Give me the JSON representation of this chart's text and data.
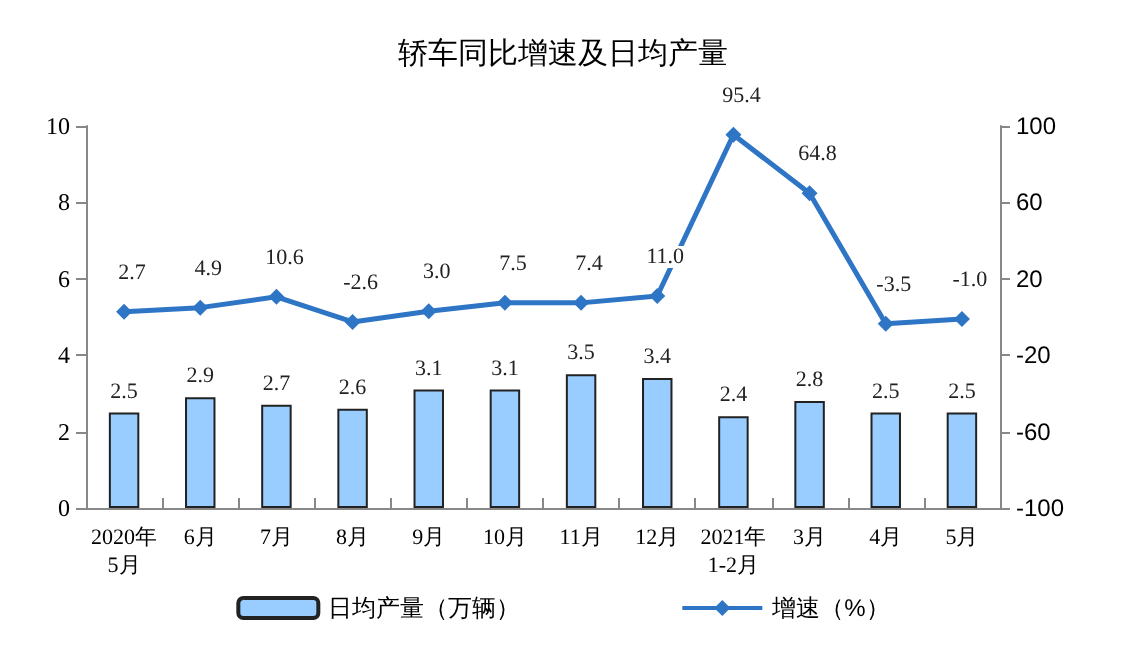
{
  "chart_data": {
    "type": "bar",
    "title": "轿车同比增速及日均产量",
    "categories": [
      "2020年\n5月",
      "6月",
      "7月",
      "8月",
      "9月",
      "10月",
      "11月",
      "12月",
      "2021年\n1-2月",
      "3月",
      "4月",
      "5月"
    ],
    "series": [
      {
        "name": "日均产量（万辆）",
        "color": "#99ccff",
        "values": [
          2.5,
          2.9,
          2.7,
          2.6,
          3.1,
          3.1,
          3.5,
          3.4,
          2.4,
          2.8,
          2.5,
          2.5
        ],
        "value_labels": [
          "2.5",
          "2.9",
          "2.7",
          "2.6",
          "3.1",
          "3.1",
          "3.5",
          "3.4",
          "2.4",
          "2.8",
          "2.5",
          "2.5"
        ]
      },
      {
        "name": "增速（%）",
        "type": "line",
        "axis": "y2",
        "color": "#2e75c6",
        "marker": "diamond",
        "values": [
          2.7,
          4.9,
          10.6,
          -2.6,
          3.0,
          7.5,
          7.4,
          11.0,
          95.4,
          64.8,
          -3.5,
          -1.0
        ],
        "value_labels": [
          "2.7",
          "4.9",
          "10.6",
          "-2.6",
          "3.0",
          "7.5",
          "7.4",
          "11.0",
          "95.4",
          "64.8",
          "-3.5",
          "-1.0"
        ]
      }
    ],
    "ylim": [
      0,
      10
    ],
    "yticks": [
      0,
      2,
      4,
      6,
      8,
      10
    ],
    "y2lim": [
      -100,
      100
    ],
    "y2ticks": [
      -100,
      -60,
      -20,
      20,
      60,
      100
    ],
    "grid": false,
    "legend": "bottom"
  }
}
